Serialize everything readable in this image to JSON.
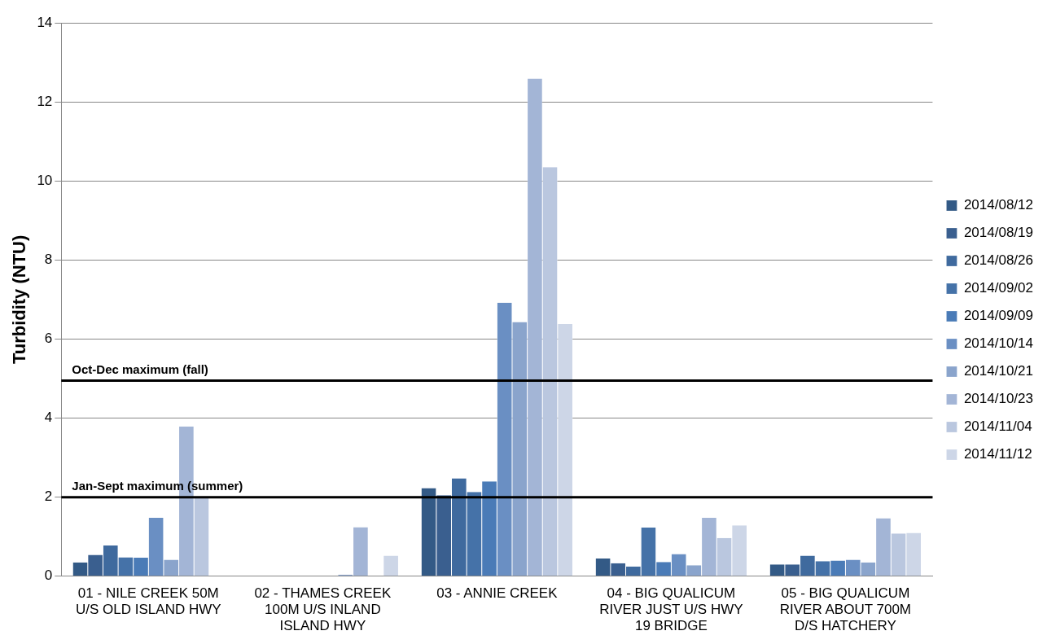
{
  "chart_data": {
    "type": "bar",
    "ylabel": "Turbidity (NTU)",
    "categories": [
      "01 - NILE CREEK 50M U/S OLD ISLAND HWY",
      "02 - THAMES CREEK 100M U/S INLAND ISLAND HWY",
      "03 - ANNIE CREEK",
      "04 - BIG QUALICUM RIVER JUST U/S HWY 19 BRIDGE",
      "05 - BIG QUALICUM RIVER ABOUT 700M D/S HATCHERY"
    ],
    "series": [
      {
        "name": "2014/08/12",
        "color": "#335a86",
        "values": [
          0.35,
          null,
          2.23,
          0.45,
          0.3
        ]
      },
      {
        "name": "2014/08/19",
        "color": "#3a5f8f",
        "values": [
          0.54,
          null,
          2.05,
          0.33,
          0.3
        ]
      },
      {
        "name": "2014/08/26",
        "color": "#3f6a9e",
        "values": [
          0.78,
          null,
          2.48,
          0.25,
          0.52
        ]
      },
      {
        "name": "2014/09/02",
        "color": "#4572a8",
        "values": [
          0.48,
          null,
          2.13,
          1.23,
          0.38
        ]
      },
      {
        "name": "2014/09/09",
        "color": "#4a7bb7",
        "values": [
          0.47,
          null,
          2.4,
          0.36,
          0.4
        ]
      },
      {
        "name": "2014/10/14",
        "color": "#6a8fc3",
        "values": [
          1.48,
          null,
          6.92,
          0.56,
          0.42
        ]
      },
      {
        "name": "2014/10/21",
        "color": "#8aa4cc",
        "values": [
          0.42,
          0.04,
          6.43,
          0.28,
          0.35
        ]
      },
      {
        "name": "2014/10/23",
        "color": "#a3b5d6",
        "values": [
          3.79,
          1.24,
          12.59,
          1.48,
          1.47
        ]
      },
      {
        "name": "2014/11/04",
        "color": "#bac7df",
        "values": [
          2.0,
          null,
          10.35,
          0.97,
          1.08
        ]
      },
      {
        "name": "2014/11/12",
        "color": "#cdd6e7",
        "values": [
          null,
          0.52,
          6.38,
          1.29,
          1.1
        ]
      }
    ],
    "ylim": [
      0,
      14
    ],
    "yticks": [
      0,
      2,
      4,
      6,
      8,
      10,
      12,
      14
    ],
    "grid": "y",
    "legend": "right",
    "ref_lines": [
      {
        "axis": "y",
        "value": 4.95,
        "label": "Oct-Dec maximum (fall)",
        "color": "#000000"
      },
      {
        "axis": "y",
        "value": 2.0,
        "label": "Jan-Sept maximum (summer)",
        "color": "#000000"
      }
    ]
  }
}
